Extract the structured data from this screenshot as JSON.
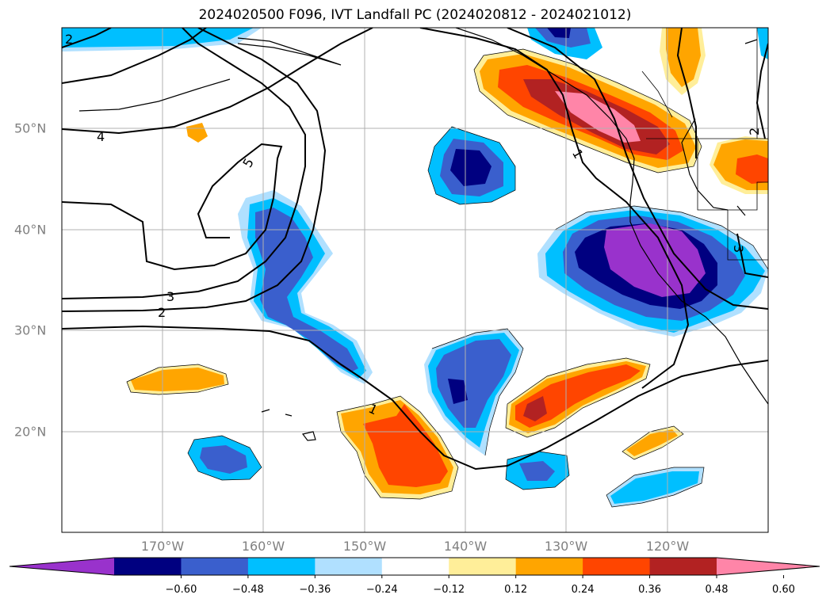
{
  "title": "2024020500 F096, IVT Landfall PC (2024020812 - 2024021012)",
  "lon_labels": [
    "170°W",
    "160°W",
    "150°W",
    "140°W",
    "130°W",
    "120°W"
  ],
  "lat_labels": [
    "50°N",
    "40°N",
    "30°N",
    "20°N"
  ],
  "contour_labels": [
    "2",
    "4",
    "5",
    "3",
    "2",
    "1",
    "1",
    "2",
    "3"
  ],
  "colorbar": {
    "colors": [
      "#9932cc",
      "#000080",
      "#3a5fcd",
      "#00bfff",
      "#b0e0ff",
      "#ffffff",
      "#ffee99",
      "#ffa500",
      "#ff4500",
      "#b22222",
      "#ff85a8"
    ],
    "tick_labels": [
      "−0.60",
      "−0.48",
      "−0.36",
      "−0.24",
      "−0.12",
      "0.12",
      "0.24",
      "0.36",
      "0.48",
      "0.60"
    ]
  }
}
